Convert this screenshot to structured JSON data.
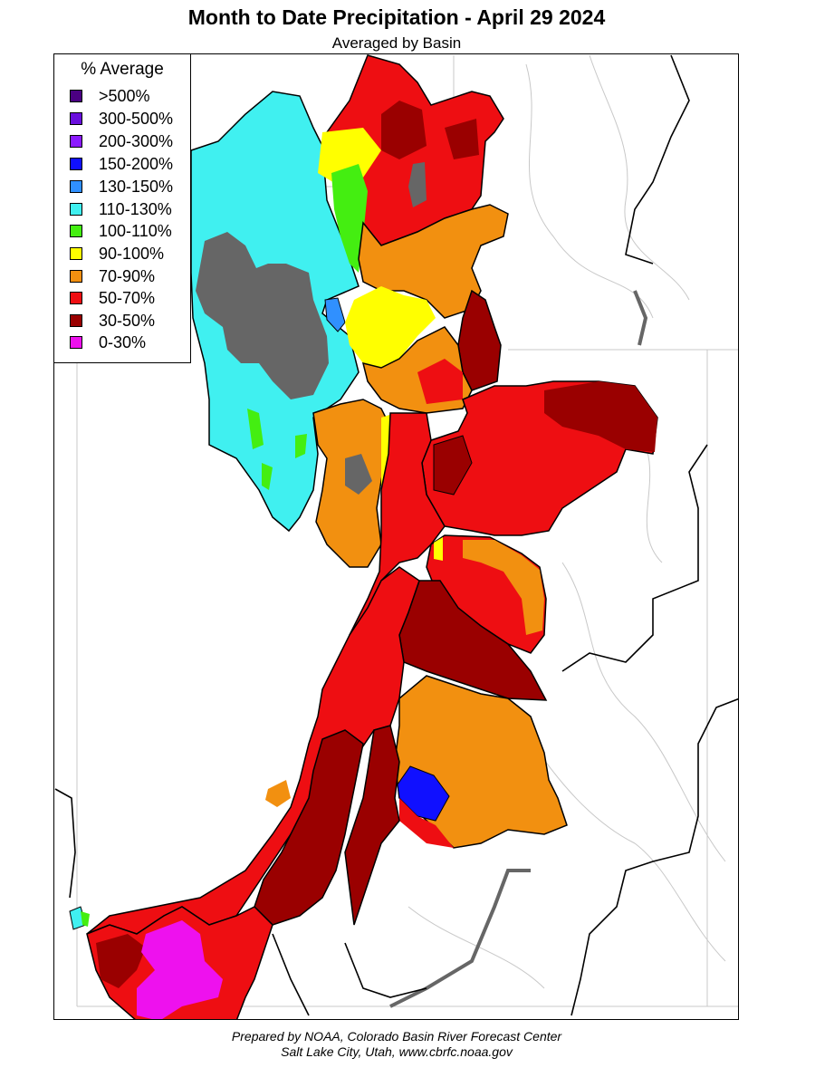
{
  "title": "Month to Date Precipitation - April 29 2024",
  "subtitle": "Averaged by Basin",
  "legend": {
    "title": "% Average",
    "items": [
      {
        "label": ">500%",
        "color": "#4b0082"
      },
      {
        "label": "300-500%",
        "color": "#6a0fdd"
      },
      {
        "label": "200-300%",
        "color": "#8b1aff"
      },
      {
        "label": "150-200%",
        "color": "#1010ff"
      },
      {
        "label": "130-150%",
        "color": "#3090ff"
      },
      {
        "label": "110-130%",
        "color": "#40f0f0"
      },
      {
        "label": "100-110%",
        "color": "#44ee11"
      },
      {
        "label": "90-100%",
        "color": "#ffff00"
      },
      {
        "label": "70-90%",
        "color": "#f29010"
      },
      {
        "label": "50-70%",
        "color": "#ee0e12"
      },
      {
        "label": "30-50%",
        "color": "#9a0000"
      },
      {
        "label": "0-30%",
        "color": "#ee11ee"
      }
    ]
  },
  "footer": {
    "line1": "Prepared by NOAA, Colorado Basin River Forecast Center",
    "line2": "Salt Lake City, Utah, www.cbrfc.noaa.gov"
  }
}
